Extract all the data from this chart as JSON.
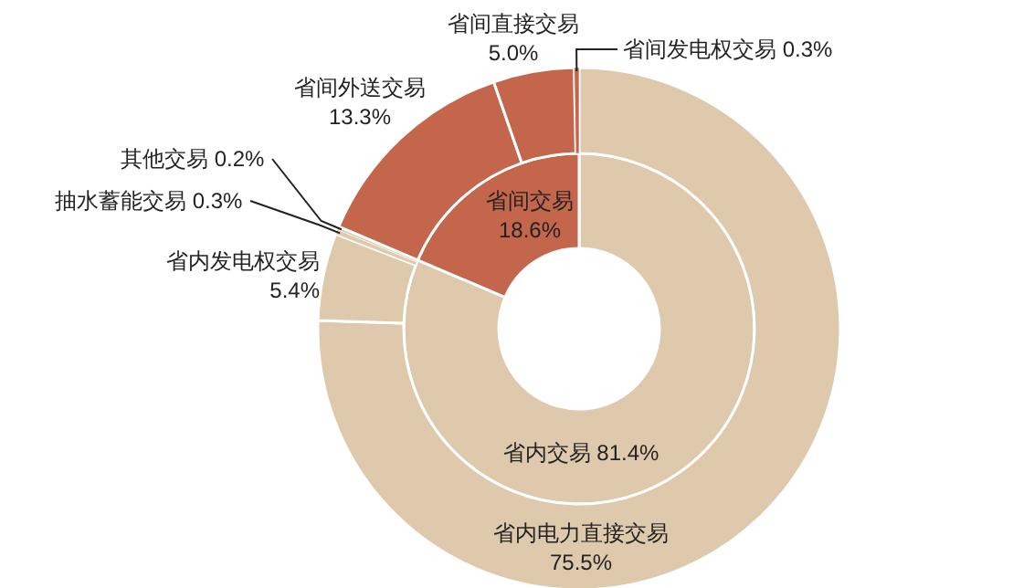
{
  "chart_data": [
    {
      "type": "donut",
      "categories": [
        "省内交易",
        "省间交易"
      ],
      "values": [
        81.4,
        18.6
      ],
      "value_labels": [
        "81.4%",
        "18.6%"
      ],
      "colors": [
        "#dec9ac",
        "#c4664b"
      ]
    },
    {
      "type": "donut",
      "categories": [
        "省内电力直接交易",
        "省内发电权交易",
        "抽水蓄能交易",
        "其他交易",
        "省间外送交易",
        "省间直接交易",
        "省间发电权交易"
      ],
      "values": [
        75.5,
        5.4,
        0.3,
        0.2,
        13.3,
        5.0,
        0.3
      ],
      "value_labels": [
        "75.5%",
        "5.4%",
        "0.3%",
        "0.2%",
        "13.3%",
        "5.0%",
        "0.3%"
      ],
      "colors": [
        "#dec9ac",
        "#dec9ac",
        "#dec9ac",
        "#dec9ac",
        "#c4664b",
        "#c4664b",
        "#c4664b"
      ]
    }
  ]
}
